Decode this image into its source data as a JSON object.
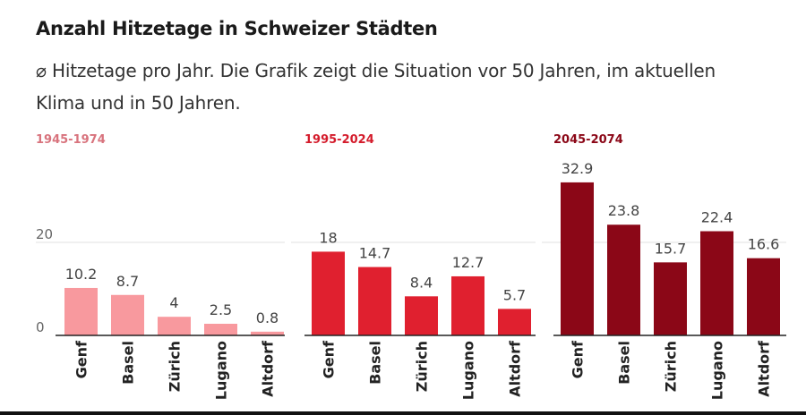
{
  "header": {
    "title": "Anzahl Hitzetage in Schweizer Städten",
    "subtitle": "⌀ Hitzetage pro Jahr. Die Grafik zeigt die Situation vor 50 Jahren, im aktuellen Klima und in 50 Jahren."
  },
  "chart_data": [
    {
      "type": "bar",
      "title": "1945-1974",
      "categories": [
        "Genf",
        "Basel",
        "Zürich",
        "Lugano",
        "Altdorf"
      ],
      "values": [
        10.2,
        8.7,
        4,
        2.5,
        0.8
      ],
      "value_labels": [
        "10.2",
        "8.7",
        "4",
        "2.5",
        "0.8"
      ],
      "color": "#f8999e",
      "title_color": "#d8737d",
      "ylim": [
        0,
        33
      ],
      "yticks": [
        0,
        20
      ],
      "ytick_labels": [
        "0",
        "20"
      ],
      "xlabel": "",
      "ylabel": "",
      "grid": true
    },
    {
      "type": "bar",
      "title": "1995-2024",
      "categories": [
        "Genf",
        "Basel",
        "Zürich",
        "Lugano",
        "Altdorf"
      ],
      "values": [
        18,
        14.7,
        8.4,
        12.7,
        5.7
      ],
      "value_labels": [
        "18",
        "14.7",
        "8.4",
        "12.7",
        "5.7"
      ],
      "color": "#e0202f",
      "title_color": "#d41c2c",
      "ylim": [
        0,
        33
      ],
      "yticks": [
        0,
        20
      ],
      "xlabel": "",
      "ylabel": "",
      "grid": true
    },
    {
      "type": "bar",
      "title": "2045-2074",
      "categories": [
        "Genf",
        "Basel",
        "Zürich",
        "Lugano",
        "Altdorf"
      ],
      "values": [
        32.9,
        23.8,
        15.7,
        22.4,
        16.6
      ],
      "value_labels": [
        "32.9",
        "23.8",
        "15.7",
        "22.4",
        "16.6"
      ],
      "color": "#8b0717",
      "title_color": "#8b0717",
      "ylim": [
        0,
        33
      ],
      "yticks": [
        0,
        20
      ],
      "xlabel": "",
      "ylabel": "",
      "grid": true
    }
  ]
}
